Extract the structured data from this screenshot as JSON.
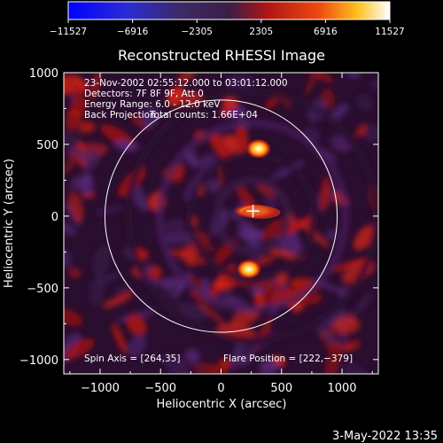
{
  "chart_data": {
    "type": "heatmap",
    "title": "Reconstructed RHESSI Image",
    "xlabel": "Heliocentric X (arcsec)",
    "ylabel": "Heliocentric Y (arcsec)",
    "xlim": [
      -1300,
      1300
    ],
    "ylim": [
      -1100,
      1000
    ],
    "xticks": [
      -1000,
      -500,
      0,
      500,
      1000
    ],
    "xtick_labels": [
      "−1000",
      "−500",
      "0",
      "500",
      "1000"
    ],
    "yticks": [
      -1000,
      -500,
      0,
      500,
      1000
    ],
    "ytick_labels": [
      "−1000",
      "−500",
      "0",
      "500",
      "1000"
    ],
    "colorbar": {
      "range": [
        -11527,
        11527
      ],
      "tick_values": [
        -11527,
        -6916,
        -2305,
        2305,
        6916,
        11527
      ],
      "tick_labels": [
        "−11527",
        "−6916",
        "−2305",
        "2305",
        "6916",
        "11527"
      ]
    },
    "annotations": {
      "time_range": "23-Nov-2002 02:55:12.000 to 03:01:12.000",
      "detectors": "Detectors: 7F 8F 9F, Att 0",
      "energy_range": "Energy Range: 6.0 - 12.0 keV",
      "method": "Back Projection",
      "total_counts": "Total counts: 1.66E+04",
      "spin_axis": "Spin Axis = [264,35]",
      "flare_position": "Flare Position = [222,−379]"
    },
    "solar_limb_radius_arcsec": 960,
    "sources": [
      {
        "x": 280,
        "y": 35,
        "label": "central bright source"
      },
      {
        "x": 310,
        "y": 470,
        "label": "northern source"
      },
      {
        "x": 230,
        "y": -370,
        "label": "southern source"
      }
    ],
    "marker": {
      "x": 264,
      "y": 35,
      "symbol": "+"
    }
  },
  "footer": {
    "timestamp": "3-May-2022 13:35"
  }
}
